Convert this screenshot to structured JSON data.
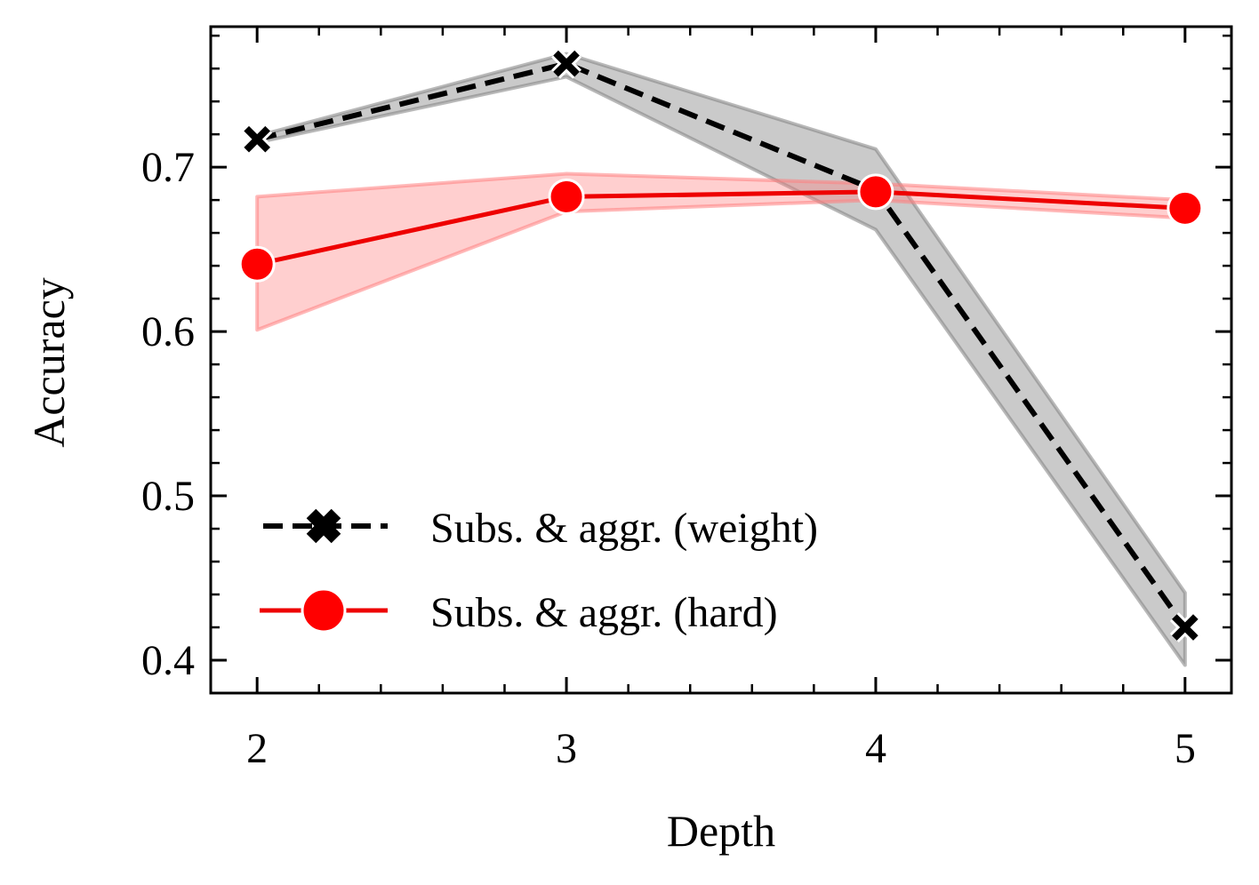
{
  "chart_data": {
    "type": "line",
    "xlabel": "Depth",
    "ylabel": "Accuracy",
    "x": [
      2,
      3,
      4,
      5
    ],
    "xlim": [
      1.85,
      5.15
    ],
    "ylim": [
      0.38,
      0.7855
    ],
    "xticks": [
      2,
      3,
      4,
      5
    ],
    "xtick_labels": [
      "2",
      "3",
      "4",
      "5"
    ],
    "yticks": [
      0.4,
      0.5,
      0.6,
      0.7
    ],
    "ytick_labels": [
      "0.4",
      "0.5",
      "0.6",
      "0.7"
    ],
    "grid": false,
    "legend_position": "lower-left",
    "series": [
      {
        "name": "Subs. & aggr. (weight)",
        "color": "#000000",
        "band_color": "#808080",
        "line_style": "dashed",
        "marker": "x",
        "values": [
          0.717,
          0.763,
          0.686,
          0.42
        ],
        "lower": [
          0.715,
          0.755,
          0.662,
          0.397
        ],
        "upper": [
          0.719,
          0.769,
          0.711,
          0.441
        ]
      },
      {
        "name": "Subs. & aggr. (hard)",
        "color": "#ee0000",
        "band_color": "#ff8080",
        "line_style": "solid",
        "marker": "circle",
        "values": [
          0.641,
          0.682,
          0.685,
          0.675
        ],
        "lower": [
          0.601,
          0.673,
          0.68,
          0.669
        ],
        "upper": [
          0.682,
          0.696,
          0.69,
          0.68
        ]
      }
    ]
  }
}
